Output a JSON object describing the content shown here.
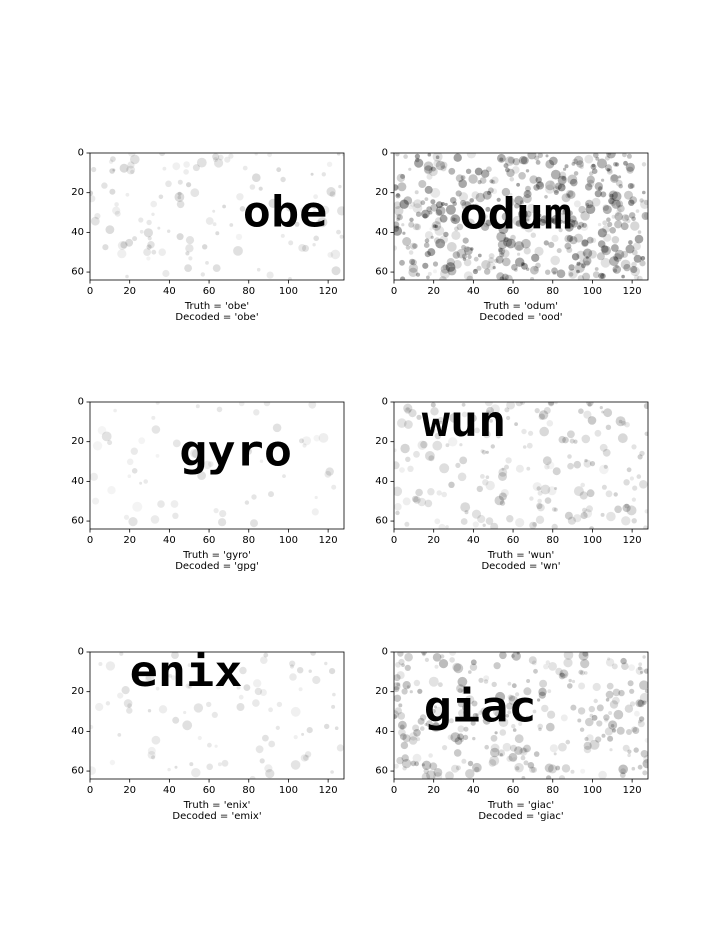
{
  "chart_data": [
    {
      "type": "image",
      "word": "obe",
      "truth_label": "Truth = 'obe'",
      "decoded_label": "Decoded = 'obe'",
      "word_x": 77,
      "word_y": 30,
      "noise": 0.1,
      "xlim": [
        0,
        128
      ],
      "ylim": [
        64,
        0
      ],
      "xticks": [
        0,
        20,
        40,
        60,
        80,
        100,
        120
      ],
      "yticks": [
        0,
        20,
        40,
        60
      ]
    },
    {
      "type": "image",
      "word": "odum",
      "truth_label": "Truth = 'odum'",
      "decoded_label": "Decoded = 'ood'",
      "word_x": 33,
      "word_y": 31,
      "noise": 0.6,
      "xlim": [
        0,
        128
      ],
      "ylim": [
        64,
        0
      ],
      "xticks": [
        0,
        20,
        40,
        60,
        80,
        100,
        120
      ],
      "yticks": [
        0,
        20,
        40,
        60
      ]
    },
    {
      "type": "image",
      "word": "gyro",
      "truth_label": "Truth = 'gyro'",
      "decoded_label": "Decoded = 'gpg'",
      "word_x": 45,
      "word_y": 25,
      "noise": 0.0,
      "xlim": [
        0,
        128
      ],
      "ylim": [
        64,
        0
      ],
      "xticks": [
        0,
        20,
        40,
        60,
        80,
        100,
        120
      ],
      "yticks": [
        0,
        20,
        40,
        60
      ]
    },
    {
      "type": "image",
      "word": "wun",
      "truth_label": "Truth = 'wun'",
      "decoded_label": "Decoded = 'wn'",
      "word_x": 14,
      "word_y": 10,
      "noise": 0.2,
      "xlim": [
        0,
        128
      ],
      "ylim": [
        64,
        0
      ],
      "xticks": [
        0,
        20,
        40,
        60,
        80,
        100,
        120
      ],
      "yticks": [
        0,
        20,
        40,
        60
      ]
    },
    {
      "type": "image",
      "word": "enix",
      "truth_label": "Truth = 'enix'",
      "decoded_label": "Decoded = 'emix'",
      "word_x": 20,
      "word_y": 10,
      "noise": 0.05,
      "xlim": [
        0,
        128
      ],
      "ylim": [
        64,
        0
      ],
      "xticks": [
        0,
        20,
        40,
        60,
        80,
        100,
        120
      ],
      "yticks": [
        0,
        20,
        40,
        60
      ]
    },
    {
      "type": "image",
      "word": "giac",
      "truth_label": "Truth = 'giac'",
      "decoded_label": "Decoded = 'giac'",
      "word_x": 15,
      "word_y": 28,
      "noise": 0.35,
      "xlim": [
        0,
        128
      ],
      "ylim": [
        64,
        0
      ],
      "xticks": [
        0,
        20,
        40,
        60,
        80,
        100,
        120
      ],
      "yticks": [
        0,
        20,
        40,
        60
      ]
    }
  ]
}
